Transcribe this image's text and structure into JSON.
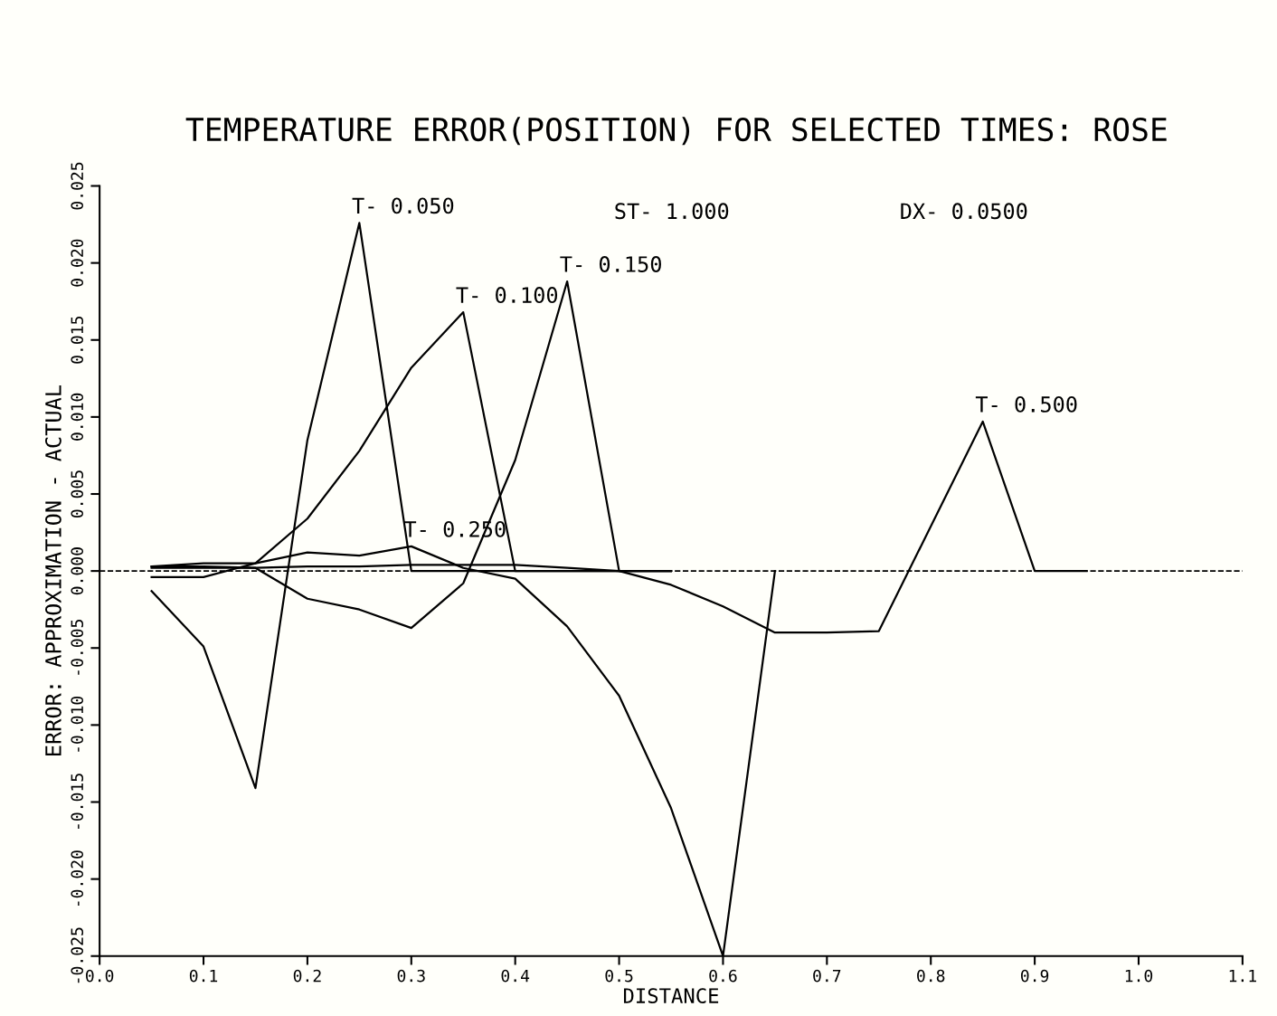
{
  "chart_data": {
    "type": "line",
    "title": "TEMPERATURE ERROR(POSITION) FOR SELECTED TIMES: ROSE",
    "xlabel": "DISTANCE",
    "ylabel": "ERROR: APPROXIMATION - ACTUAL",
    "xlim": [
      0.0,
      1.1
    ],
    "ylim": [
      -0.025,
      0.025
    ],
    "xticks": [
      {
        "value": 0.0,
        "label": "0.0"
      },
      {
        "value": 0.1,
        "label": "0.1"
      },
      {
        "value": 0.2,
        "label": "0.2"
      },
      {
        "value": 0.3,
        "label": "0.3"
      },
      {
        "value": 0.4,
        "label": "0.4"
      },
      {
        "value": 0.5,
        "label": "0.5"
      },
      {
        "value": 0.6,
        "label": "0.6"
      },
      {
        "value": 0.7,
        "label": "0.7"
      },
      {
        "value": 0.8,
        "label": "0.8"
      },
      {
        "value": 0.9,
        "label": "0.9"
      },
      {
        "value": 1.0,
        "label": "1.0"
      },
      {
        "value": 1.1,
        "label": "1.1"
      }
    ],
    "yticks": [
      {
        "value": -0.025,
        "label": "-0.025"
      },
      {
        "value": -0.02,
        "label": "-0.020"
      },
      {
        "value": -0.015,
        "label": "-0.015"
      },
      {
        "value": -0.01,
        "label": "-0.010"
      },
      {
        "value": -0.005,
        "label": "-0.005"
      },
      {
        "value": 0.0,
        "label": "0.000"
      },
      {
        "value": 0.005,
        "label": "0.005"
      },
      {
        "value": 0.01,
        "label": "0.010"
      },
      {
        "value": 0.015,
        "label": "0.015"
      },
      {
        "value": 0.02,
        "label": "0.020"
      },
      {
        "value": 0.025,
        "label": "0.025"
      }
    ],
    "grid": false,
    "legend": false,
    "marker": "none",
    "line_style": "solid",
    "series": [
      {
        "color": "#000000",
        "x": [
          0.05,
          0.1,
          0.15,
          0.2,
          0.25,
          0.3,
          0.35,
          0.4,
          0.45,
          0.5,
          0.55
        ],
        "values": [
          -0.0013,
          -0.0049,
          -0.0141,
          0.0085,
          0.0226,
          0.0,
          0.0,
          0.0,
          0.0,
          0.0,
          0.0
        ]
      },
      {
        "color": "#000000",
        "x": [
          0.05,
          0.1,
          0.15,
          0.2,
          0.25,
          0.3,
          0.35,
          0.4,
          0.45,
          0.5,
          0.55
        ],
        "values": [
          -0.0004,
          -0.0004,
          0.0005,
          0.0034,
          0.0078,
          0.0132,
          0.0168,
          0.0,
          0.0,
          0.0,
          0.0
        ]
      },
      {
        "color": "#000000",
        "x": [
          0.05,
          0.1,
          0.15,
          0.2,
          0.25,
          0.3,
          0.35,
          0.4,
          0.45,
          0.5,
          0.55
        ],
        "values": [
          0.0003,
          0.0003,
          0.0002,
          -0.0018,
          -0.0025,
          -0.0037,
          -0.0008,
          0.0072,
          0.0188,
          0.0,
          0.0
        ]
      },
      {
        "color": "#000000",
        "x": [
          0.05,
          0.1,
          0.15,
          0.2,
          0.25,
          0.3,
          0.35,
          0.4,
          0.45,
          0.5,
          0.55,
          0.6,
          0.65
        ],
        "values": [
          0.0003,
          0.0005,
          0.0005,
          0.0012,
          0.001,
          0.0016,
          0.0002,
          -0.0005,
          -0.0036,
          -0.0081,
          -0.0154,
          -0.025,
          0.0
        ]
      },
      {
        "color": "#000000",
        "x": [
          0.05,
          0.1,
          0.15,
          0.2,
          0.25,
          0.3,
          0.35,
          0.4,
          0.45,
          0.5,
          0.55,
          0.6,
          0.65,
          0.7,
          0.75,
          0.8,
          0.85,
          0.9,
          0.95
        ],
        "values": [
          0.0002,
          0.0002,
          0.0002,
          0.0003,
          0.0003,
          0.0004,
          0.0004,
          0.0004,
          0.0002,
          0.0,
          -0.0009,
          -0.0023,
          -0.004,
          -0.004,
          -0.0039,
          0.0029,
          0.0097,
          0.0,
          0.0
        ]
      }
    ],
    "ref_lines": [
      {
        "axis": "y",
        "value": 0.0,
        "line_style": "dashed",
        "color": "#000000"
      }
    ],
    "annotations": [
      {
        "text": "T- 0.050",
        "x": 0.25,
        "y": 0.0226
      },
      {
        "text": "T- 0.100",
        "x": 0.35,
        "y": 0.0168
      },
      {
        "text": "T- 0.150",
        "x": 0.45,
        "y": 0.0188
      },
      {
        "text": "T- 0.250",
        "x": 0.3,
        "y": 0.0016
      },
      {
        "text": "T- 0.500",
        "x": 0.85,
        "y": 0.0097
      },
      "ST- 1.000",
      "DX- 0.0500"
    ]
  }
}
